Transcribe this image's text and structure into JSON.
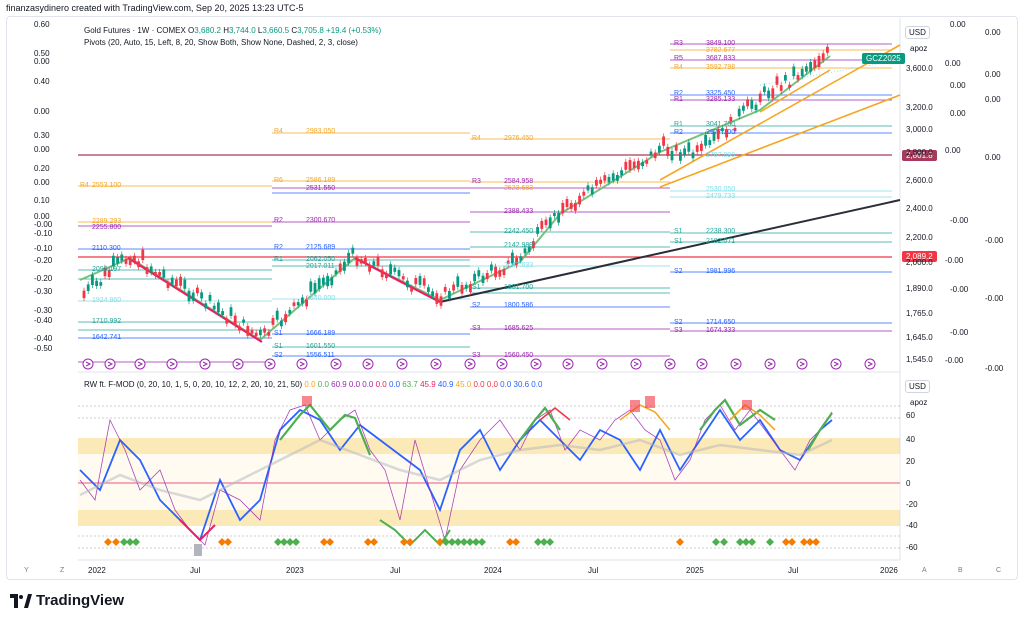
{
  "author_line": "finanzasydinero created with TradingView.com, Sep 20, 2025 13:23 UTC-5",
  "symbol_line": {
    "name": "Gold Futures · 1W · COMEX",
    "o_label": "O",
    "o": "3,680.2",
    "h_label": "H",
    "h": "3,744.0",
    "l_label": "L",
    "l": "3,660.5",
    "c_label": "C",
    "c": "3,705.8",
    "change": "+19.4 (+0.53%)"
  },
  "pivots_line": "Pivots (20, Auto, 15, Left, 8, 20, Show Both, Show None, Dashed, 2, 3, close)",
  "osc_line": {
    "name": "RW ft. F-MOD (0, 20, 10, 1, 5, 0, 20, 10, 12, 2, 20, 10, 21, 50)",
    "values": [
      {
        "v": "0.0",
        "c": "#f5a623"
      },
      {
        "v": "0.0",
        "c": "#4caf50"
      },
      {
        "v": "60.9",
        "c": "#9c27b0"
      },
      {
        "v": "0.0",
        "c": "#9c27b0"
      },
      {
        "v": "0.0",
        "c": "#9c27b0"
      },
      {
        "v": "0.0",
        "c": "#e91e63"
      },
      {
        "v": "0.0",
        "c": "#2962ff"
      },
      {
        "v": "63.7",
        "c": "#4caf50"
      },
      {
        "v": "45.9",
        "c": "#e91e63"
      },
      {
        "v": "40.9",
        "c": "#2962ff"
      },
      {
        "v": "45.0",
        "c": "#f5a623"
      },
      {
        "v": "0.0",
        "c": "#f23645"
      },
      {
        "v": "0.0",
        "c": "#f23645"
      },
      {
        "v": "0.0",
        "c": "#2962ff"
      },
      {
        "v": "30.6",
        "c": "#2962ff"
      },
      {
        "v": "0.0",
        "c": "#2962ff"
      }
    ]
  },
  "right_panel": {
    "currency": "USD",
    "mode": "apoz",
    "price_ticks": [
      "3,600.0",
      "3,200.0",
      "3,000.0",
      "2,800.0",
      "2,600.0",
      "2,400.0",
      "2,200.0",
      "2,000.0",
      "1,890.0",
      "1,765.0",
      "1,645.0",
      "1,545.0"
    ],
    "symbol_tag": "GCZ2025",
    "tag_2801": "2,801.8",
    "tag_2089": "2,089.2",
    "osc_ticks": [
      "60",
      "40",
      "20",
      "0",
      "-20",
      "-40",
      "-60"
    ],
    "osc_currency": "USD",
    "osc_mode": "apoz"
  },
  "left_axis": [
    "0.60",
    "0.50",
    "0.00",
    "0.40",
    "0.00",
    "0.30",
    "0.00",
    "0.20",
    "0.00",
    "0.10",
    "0.00",
    "-0.00",
    "-0.10",
    "-0.10",
    "-0.20",
    "-0.20",
    "-0.30",
    "-0.30",
    "-0.40",
    "-0.40",
    "-0.50"
  ],
  "far_right_axis": [
    "0.00",
    "0.00",
    "0.00",
    "0.00",
    "0.00",
    "0.00",
    "0.00",
    "0.00",
    "0.00",
    "-0.00",
    "-0.00",
    "-0.00",
    "-0.00",
    "-0.00",
    "-0.00",
    "-0.00",
    "-0.00"
  ],
  "time_axis": [
    "2022",
    "Jul",
    "2023",
    "Jul",
    "2024",
    "Jul",
    "2025",
    "Jul",
    "2026"
  ],
  "bottom_bar": {
    "left": [
      "Y",
      "Z"
    ],
    "right": [
      "A",
      "B",
      "C"
    ]
  },
  "pivot_labels": {
    "p2021_r4": "R4",
    "p2021_r4v": "2553.100",
    "p2022_r4": "R4",
    "p2022_r4v": "2983.050",
    "p2022_r6": "R6",
    "p2022_r6v": "2586.189",
    "p2022_r3v": "2531.550",
    "p2022_r2": "R2",
    "p2022_r2v": "2300.670",
    "p2022_r2b": "R2",
    "p2022_r2bv": "2125.689",
    "p2022_r1": "R1",
    "p2022_r1v": "2062.050",
    "p2022_r1bv": "2017.011",
    "p2022_pv": "1840.000",
    "p2022_s1": "S1",
    "p2022_s1v": "1601.550",
    "p2022_s1b": "S1",
    "p2022_s1bv": "1666.189",
    "p2022_s2": "S2",
    "p2022_s2v": "1556.511",
    "p2021_a": "2289.293",
    "p2021_b": "2255.800",
    "p2021_c": "2110.300",
    "p2021_d": "2090.197",
    "p2021_e": "1924.860",
    "p2021_f": "1710.992",
    "p2021_g": "1642.741",
    "p2023_r4": "R4",
    "p2023_r4v": "2976.450",
    "p2023_r3": "R3",
    "p2023_r3v": "2584.958",
    "p2023_r5v": "2523.683",
    "p2023_r2v": "2388.433",
    "p2023_r1v": "2242.450",
    "p2023_pv": "2142.989",
    "p2023_pbv": "2047.633",
    "p2023_s1": "S1",
    "p2023_s1v": "1881.700",
    "p2023_s2": "S2",
    "p2023_s2v": "1800.586",
    "p2023_s3": "S3",
    "p2023_s3v": "1685.625",
    "p2023_s4": "S3",
    "p2023_s4v": "1560.450",
    "p2024_r3": "R3",
    "p2024_r3v": "3849.100",
    "p2024_r6v": "3782.677",
    "p2024_r5": "R5",
    "p2024_r5v": "3687.833",
    "p2024_r4": "R4",
    "p2024_r4v": "3592.798",
    "p2024_r2": "R2",
    "p2024_r2v": "3325.450",
    "p2024_r1": "R1",
    "p2024_r1v": "3285.133",
    "p2024_r1b": "R1",
    "p2024_r1bv": "3041.750",
    "p2024_r2b": "R2",
    "p2024_r2bv": "2977.100",
    "p2024_pv": "2787.890",
    "p2024_p2v": "2530.050",
    "p2024_p3v": "2479.733",
    "p2024_s1": "S1",
    "p2024_s1v": "2238.300",
    "p2024_s1b": "S1",
    "p2024_s1bv": "2182.071",
    "p2024_s2": "S2",
    "p2024_s2v": "1981.996",
    "p2024_s2b": "S2",
    "p2024_s2bv": "1714.650",
    "p2024_s3": "S3",
    "p2024_s3v": "1674.333"
  },
  "footer_brand": "TradingView",
  "colors": {
    "up": "#089981",
    "down": "#f23645",
    "green_line": "#66bb6a",
    "orange": "#f59e0b",
    "trend_black": "#2a2e39",
    "pink": "#e91e63",
    "blue": "#2962ff",
    "magenta": "#9c27b0",
    "tag_red": "#f23645",
    "tag_maroon": "#a63a5a",
    "tag_green": "#089981"
  }
}
